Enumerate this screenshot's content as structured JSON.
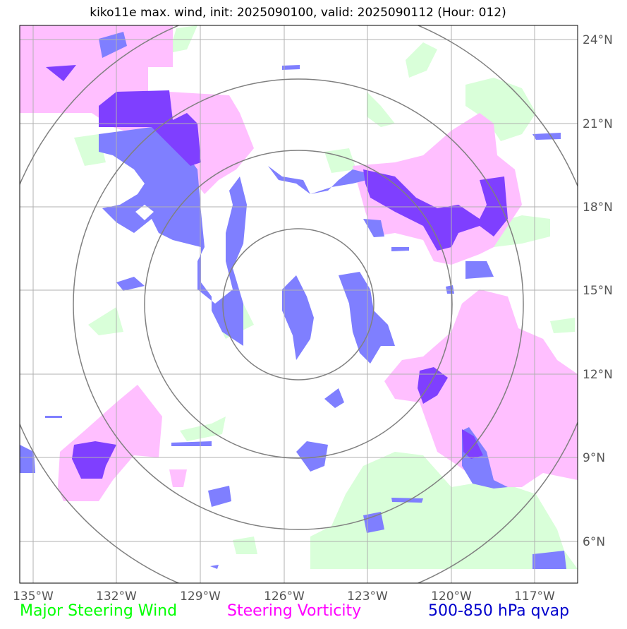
{
  "title": "kiko11e max. wind, init: 2025090100, valid: 2025090112 (Hour: 012)",
  "axes": {
    "lon_ticks": [
      "135°W",
      "132°W",
      "129°W",
      "126°W",
      "123°W",
      "120°W",
      "117°W"
    ],
    "lat_ticks": [
      "24°N",
      "21°N",
      "18°N",
      "15°N",
      "12°N",
      "9°N",
      "6°N"
    ],
    "lon_values": [
      -135,
      -132,
      -129,
      -126,
      -123,
      -120,
      -117
    ],
    "lat_values": [
      24,
      21,
      18,
      15,
      12,
      9,
      6
    ],
    "lon_range": [
      -135.5,
      -115.5
    ],
    "lat_range": [
      4.5,
      25
    ]
  },
  "legend": [
    {
      "label": "Major Steering Wind",
      "color": "#00ff00"
    },
    {
      "label": "Steering Vorticity",
      "color": "#ff00ff"
    },
    {
      "label": "500-850 hPa qvap",
      "color": "#0000cc"
    }
  ],
  "colors": {
    "wind_fill": "#d9ffd9",
    "vorticity_fill": "#ffbfff",
    "qvap_fill": "#7f7fff",
    "qvap_dark": "#7f3fff",
    "grid": "#b0b0b0",
    "range_rings": "#808080"
  },
  "range_rings_center": {
    "lon": -125.5,
    "lat": 14.7
  }
}
